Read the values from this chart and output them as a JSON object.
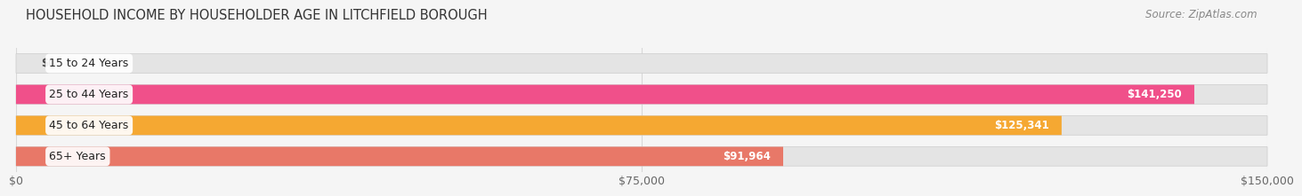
{
  "title": "HOUSEHOLD INCOME BY HOUSEHOLDER AGE IN LITCHFIELD BOROUGH",
  "source": "Source: ZipAtlas.com",
  "categories": [
    "15 to 24 Years",
    "25 to 44 Years",
    "45 to 64 Years",
    "65+ Years"
  ],
  "values": [
    0,
    141250,
    125341,
    91964
  ],
  "bar_colors": [
    "#b0b0d8",
    "#f0508a",
    "#f5a832",
    "#e87868"
  ],
  "bar_bg_color": "#e8e8e8",
  "background_color": "#f5f5f5",
  "xlim": [
    0,
    150000
  ],
  "xticks": [
    0,
    75000,
    150000
  ],
  "xtick_labels": [
    "$0",
    "$75,000",
    "$150,000"
  ],
  "value_labels": [
    "$0",
    "$141,250",
    "$125,341",
    "$91,964"
  ],
  "bar_height": 0.62,
  "title_fontsize": 10.5,
  "label_fontsize": 9,
  "value_fontsize": 8.5,
  "source_fontsize": 8.5,
  "grid_color": "#d8d8d8"
}
